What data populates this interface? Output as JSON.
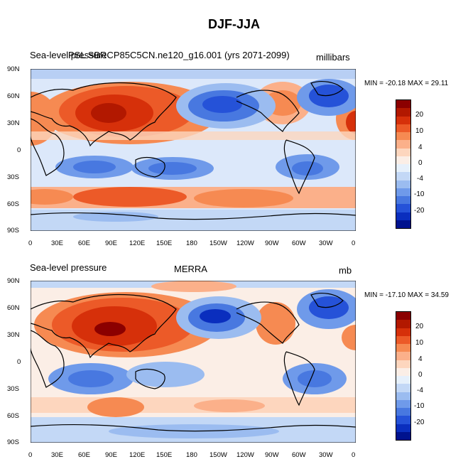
{
  "figure_title": "DJF-JJA",
  "panels": [
    {
      "left_label": "Sea-level pressure",
      "center_label": "PSL SBRCP85C5CN.ne120_g16.001 (yrs 2071-2099)",
      "units": "millibars",
      "minmax": "MIN = -20.18 MAX =  29.11"
    },
    {
      "left_label": "Sea-level pressure",
      "center_label": "MERRA",
      "units": "mb",
      "minmax": "MIN = -17.10 MAX =  34.59"
    }
  ],
  "lat_ticks": [
    "90N",
    "60N",
    "30N",
    "0",
    "30S",
    "60S",
    "90S"
  ],
  "lon_ticks": [
    "0",
    "30E",
    "60E",
    "90E",
    "120E",
    "150E",
    "180",
    "150W",
    "120W",
    "90W",
    "60W",
    "30W",
    "0"
  ],
  "colorbar": {
    "labels": [
      "20",
      "10",
      "4",
      "0",
      "-4",
      "-10",
      "-20"
    ],
    "colors": [
      "#8b0000",
      "#b21800",
      "#d6300a",
      "#ec5a28",
      "#f68a52",
      "#fbb08a",
      "#fdd6be",
      "#fbeee6",
      "#e6f0fb",
      "#c3d8f6",
      "#9bbcf0",
      "#6f9aea",
      "#4878e0",
      "#2552d8",
      "#0a2ebe",
      "#00128e"
    ]
  }
}
